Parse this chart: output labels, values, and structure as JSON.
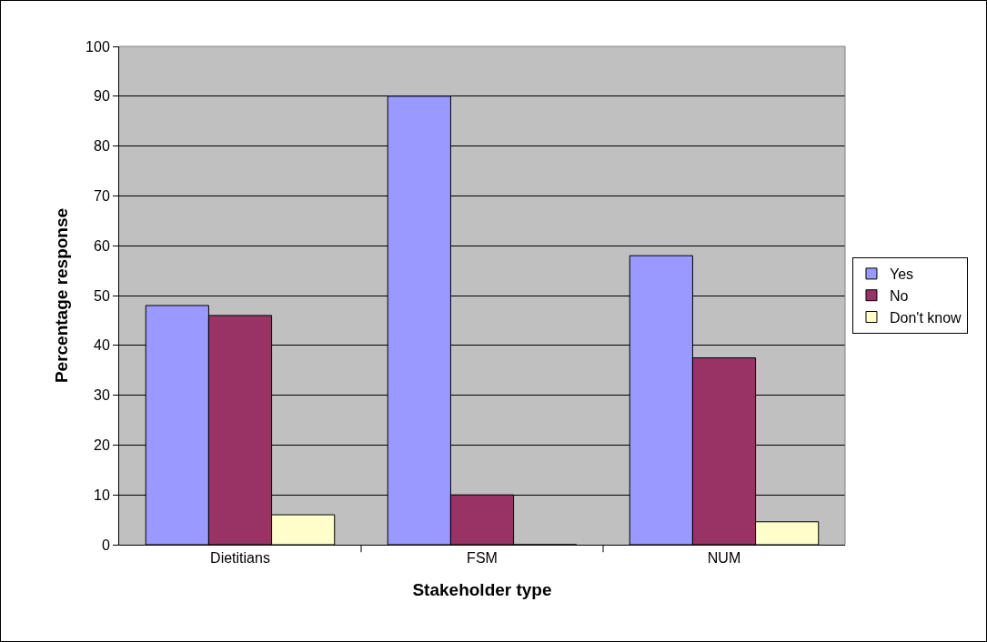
{
  "chart_data": {
    "type": "bar",
    "xlabel": "Stakeholder type",
    "ylabel": "Percentage response",
    "categories": [
      "Dietitians",
      "FSM",
      "NUM"
    ],
    "series": [
      {
        "name": "Yes",
        "color": "#9999ff",
        "values": [
          48,
          90,
          58
        ]
      },
      {
        "name": "No",
        "color": "#993366",
        "values": [
          46,
          10,
          37.5
        ]
      },
      {
        "name": "Don't know",
        "color": "#ffffcc",
        "values": [
          6,
          0,
          4.6
        ]
      }
    ],
    "ylim": [
      0,
      100
    ],
    "yticks": [
      0,
      10,
      20,
      30,
      40,
      50,
      60,
      70,
      80,
      90,
      100
    ],
    "grid": "y",
    "legend": "right"
  }
}
